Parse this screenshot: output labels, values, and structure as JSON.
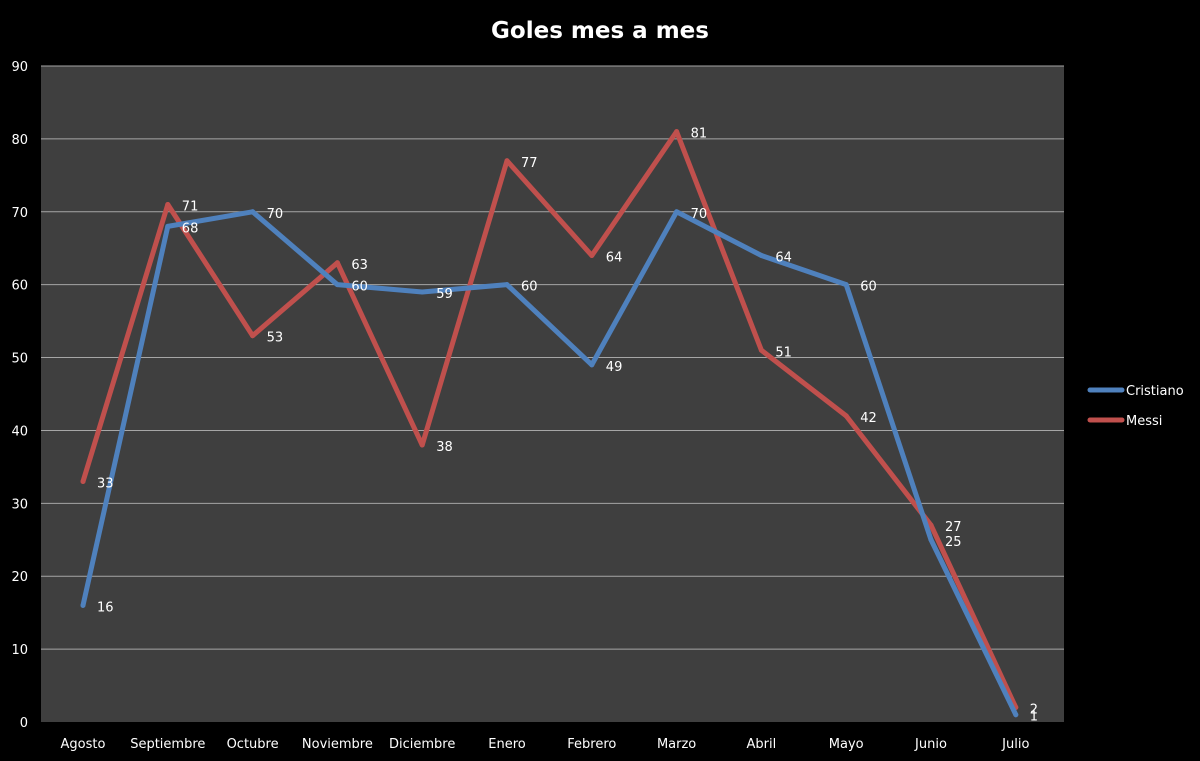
{
  "chart_data": {
    "type": "line",
    "title": "Goles mes a mes",
    "xlabel": "",
    "ylabel": "",
    "categories": [
      "Agosto",
      "Septiembre",
      "Octubre",
      "Noviembre",
      "Diciembre",
      "Enero",
      "Febrero",
      "Marzo",
      "Abril",
      "Mayo",
      "Junio",
      "Julio"
    ],
    "ylim": [
      0,
      90
    ],
    "yticks": [
      0,
      10,
      20,
      30,
      40,
      50,
      60,
      70,
      80,
      90
    ],
    "grid": true,
    "legend": "right",
    "series": [
      {
        "name": "Cristiano",
        "color": "#4f81bd",
        "values": [
          16,
          68,
          70,
          60,
          59,
          60,
          49,
          70,
          64,
          60,
          25,
          1
        ]
      },
      {
        "name": "Messi",
        "color": "#c0504d",
        "values": [
          33,
          71,
          53,
          63,
          38,
          77,
          64,
          81,
          51,
          42,
          27,
          2
        ]
      }
    ],
    "colors": {
      "background": "#000000",
      "plot_area": "#3f3f3f",
      "gridline": "#a6a6a6",
      "text": "#ffffff"
    }
  }
}
